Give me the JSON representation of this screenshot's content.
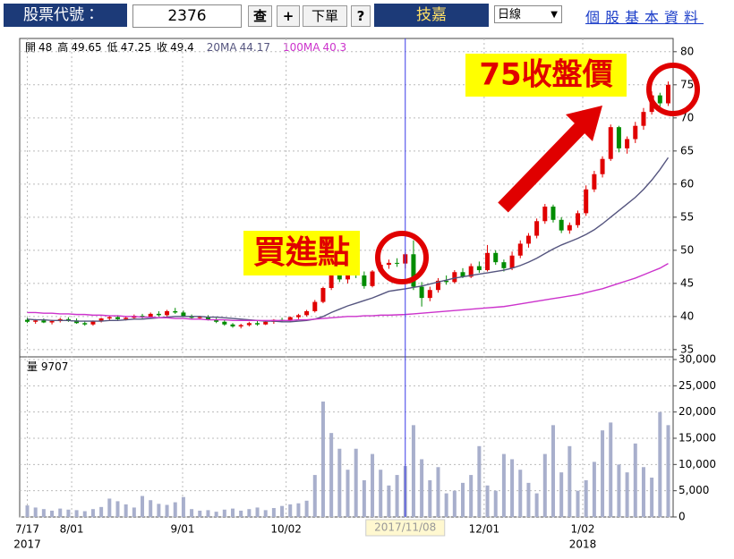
{
  "toolbar": {
    "code_label": "股票代號：",
    "code": "2376",
    "query": "查",
    "plus": "+",
    "order": "下單",
    "help": "?",
    "name": "技嘉",
    "period": "日線",
    "link": "個股基本資料"
  },
  "chart_data": {
    "type": "candlestick",
    "info": [
      {
        "label": "開",
        "value": 48
      },
      {
        "label": "高",
        "value": 49.65
      },
      {
        "label": "低",
        "value": 47.25
      },
      {
        "label": "收",
        "value": 49.4
      }
    ],
    "up_color": "#e00000",
    "down_color": "#008c00",
    "ohlc": [
      [
        39.5,
        39.8,
        39.0,
        39.2
      ],
      [
        39.2,
        39.6,
        38.9,
        39.4
      ],
      [
        39.4,
        39.7,
        39.0,
        39.1
      ],
      [
        39.1,
        39.5,
        38.8,
        39.3
      ],
      [
        39.3,
        39.8,
        39.1,
        39.6
      ],
      [
        39.6,
        39.9,
        39.2,
        39.4
      ],
      [
        39.4,
        39.7,
        38.9,
        39.0
      ],
      [
        39.0,
        39.3,
        38.6,
        38.8
      ],
      [
        38.8,
        39.4,
        38.6,
        39.3
      ],
      [
        39.3,
        39.8,
        39.1,
        39.7
      ],
      [
        39.7,
        40.1,
        39.4,
        39.9
      ],
      [
        39.9,
        40.2,
        39.5,
        39.6
      ],
      [
        39.6,
        40.0,
        39.4,
        39.8
      ],
      [
        39.8,
        40.3,
        39.6,
        40.1
      ],
      [
        40.1,
        40.4,
        39.7,
        39.9
      ],
      [
        39.9,
        40.6,
        39.8,
        40.4
      ],
      [
        40.4,
        40.8,
        40.0,
        40.2
      ],
      [
        40.2,
        41.0,
        40.0,
        40.8
      ],
      [
        40.8,
        41.3,
        40.4,
        40.6
      ],
      [
        40.6,
        40.9,
        39.9,
        40.0
      ],
      [
        40.0,
        40.3,
        39.6,
        39.8
      ],
      [
        39.8,
        40.1,
        39.5,
        39.9
      ],
      [
        39.9,
        40.2,
        39.4,
        39.5
      ],
      [
        39.5,
        39.8,
        39.0,
        39.2
      ],
      [
        39.2,
        39.5,
        38.6,
        38.8
      ],
      [
        38.8,
        39.0,
        38.3,
        38.5
      ],
      [
        38.5,
        38.9,
        38.2,
        38.7
      ],
      [
        38.7,
        39.2,
        38.5,
        39.0
      ],
      [
        39.0,
        39.3,
        38.6,
        38.8
      ],
      [
        38.8,
        39.4,
        38.7,
        39.2
      ],
      [
        39.2,
        39.6,
        38.9,
        39.5
      ],
      [
        39.5,
        39.8,
        39.1,
        39.4
      ],
      [
        39.4,
        40.0,
        39.2,
        39.9
      ],
      [
        39.9,
        40.4,
        39.6,
        40.2
      ],
      [
        40.2,
        41.0,
        40.0,
        40.8
      ],
      [
        40.8,
        42.5,
        40.6,
        42.2
      ],
      [
        42.2,
        44.5,
        42.0,
        44.3
      ],
      [
        44.3,
        47.5,
        44.0,
        47.0
      ],
      [
        47.0,
        47.4,
        45.2,
        45.6
      ],
      [
        45.6,
        47.0,
        45.0,
        46.6
      ],
      [
        46.6,
        47.3,
        45.8,
        46.2
      ],
      [
        46.2,
        46.8,
        44.2,
        44.6
      ],
      [
        44.6,
        47.0,
        44.4,
        46.8
      ],
      [
        46.8,
        48.2,
        46.5,
        47.8
      ],
      [
        47.8,
        48.6,
        47.2,
        48.1
      ],
      [
        48.1,
        48.8,
        47.5,
        48.0
      ],
      [
        48,
        49.65,
        47.25,
        49.4
      ],
      [
        49.4,
        51.5,
        44.0,
        44.5
      ],
      [
        44.5,
        45.2,
        41.5,
        42.8
      ],
      [
        42.8,
        44.5,
        42.3,
        44.0
      ],
      [
        44.0,
        45.8,
        43.6,
        45.4
      ],
      [
        45.4,
        46.2,
        44.8,
        45.2
      ],
      [
        45.2,
        47.0,
        45.0,
        46.7
      ],
      [
        46.7,
        47.3,
        45.8,
        46.0
      ],
      [
        46.0,
        48.0,
        45.8,
        47.6
      ],
      [
        47.6,
        48.3,
        46.6,
        47.0
      ],
      [
        47.0,
        50.8,
        46.8,
        49.6
      ],
      [
        49.6,
        50.0,
        47.8,
        48.2
      ],
      [
        48.2,
        48.6,
        46.8,
        47.3
      ],
      [
        47.3,
        49.8,
        47.0,
        49.2
      ],
      [
        49.2,
        51.5,
        48.8,
        51.0
      ],
      [
        51.0,
        52.6,
        50.4,
        52.2
      ],
      [
        52.2,
        54.8,
        51.8,
        54.4
      ],
      [
        54.4,
        57.0,
        54.0,
        56.6
      ],
      [
        56.6,
        56.9,
        54.2,
        54.6
      ],
      [
        54.6,
        55.0,
        52.6,
        53.0
      ],
      [
        53.0,
        54.2,
        52.5,
        53.8
      ],
      [
        53.8,
        56.0,
        53.4,
        55.6
      ],
      [
        55.6,
        59.8,
        55.2,
        59.2
      ],
      [
        59.2,
        62.0,
        58.8,
        61.5
      ],
      [
        61.5,
        64.2,
        61.0,
        63.8
      ],
      [
        63.8,
        69.0,
        63.5,
        68.6
      ],
      [
        68.6,
        68.8,
        64.8,
        65.4
      ],
      [
        65.4,
        67.2,
        64.6,
        66.8
      ],
      [
        66.8,
        69.4,
        66.2,
        68.8
      ],
      [
        68.8,
        71.5,
        68.2,
        70.9
      ],
      [
        70.9,
        74.0,
        70.5,
        73.4
      ],
      [
        73.4,
        73.8,
        71.6,
        72.2
      ],
      [
        72.2,
        75.5,
        71.8,
        75.0
      ]
    ],
    "series": [
      {
        "name": "20MA",
        "readout": 44.17,
        "color": "#55557f",
        "values": [
          39.6,
          39.5,
          39.5,
          39.4,
          39.4,
          39.4,
          39.3,
          39.3,
          39.3,
          39.3,
          39.4,
          39.4,
          39.5,
          39.6,
          39.6,
          39.7,
          39.8,
          39.9,
          40.0,
          40.0,
          40.0,
          40.0,
          39.9,
          39.9,
          39.8,
          39.7,
          39.6,
          39.5,
          39.4,
          39.3,
          39.3,
          39.2,
          39.2,
          39.3,
          39.4,
          39.6,
          40.0,
          40.6,
          41.1,
          41.6,
          42.0,
          42.4,
          42.8,
          43.3,
          43.8,
          44.0,
          44.17,
          44.4,
          44.6,
          44.9,
          45.2,
          45.5,
          45.8,
          46.0,
          46.2,
          46.4,
          46.6,
          46.8,
          47.0,
          47.3,
          47.7,
          48.2,
          48.8,
          49.5,
          50.2,
          50.8,
          51.3,
          51.8,
          52.4,
          53.1,
          54.0,
          55.0,
          56.0,
          57.0,
          58.0,
          59.2,
          60.6,
          62.2,
          64.0
        ]
      },
      {
        "name": "100MA",
        "readout": 40.3,
        "color": "#cc33cc",
        "values": [
          40.6,
          40.6,
          40.5,
          40.5,
          40.4,
          40.4,
          40.3,
          40.3,
          40.2,
          40.2,
          40.1,
          40.1,
          40.0,
          40.0,
          39.9,
          39.9,
          39.8,
          39.8,
          39.7,
          39.7,
          39.6,
          39.6,
          39.5,
          39.5,
          39.5,
          39.4,
          39.4,
          39.4,
          39.4,
          39.4,
          39.4,
          39.4,
          39.4,
          39.5,
          39.5,
          39.6,
          39.7,
          39.8,
          39.9,
          40.0,
          40.0,
          40.1,
          40.1,
          40.2,
          40.2,
          40.25,
          40.3,
          40.4,
          40.5,
          40.6,
          40.7,
          40.8,
          40.9,
          41.0,
          41.1,
          41.2,
          41.3,
          41.4,
          41.5,
          41.7,
          41.9,
          42.1,
          42.3,
          42.5,
          42.7,
          42.9,
          43.1,
          43.3,
          43.6,
          43.9,
          44.2,
          44.6,
          45.0,
          45.4,
          45.8,
          46.3,
          46.8,
          47.3,
          48.0
        ]
      }
    ],
    "ylim": [
      33.9,
      82
    ],
    "yticks": [
      35,
      40,
      45,
      50,
      55,
      60,
      65,
      70,
      75,
      80
    ],
    "xlim": [
      -0.6,
      78.6
    ],
    "xticks": [
      {
        "value": 0,
        "label": "7/17"
      },
      {
        "value": 5.4,
        "label": "8/01"
      },
      {
        "value": 18.9,
        "label": "9/01"
      },
      {
        "value": 31.5,
        "label": "10/02"
      },
      {
        "value": 55.6,
        "label": "12/01"
      },
      {
        "value": 67.6,
        "label": "1/02"
      }
    ],
    "year_labels": [
      {
        "value": 0,
        "label": "2017"
      },
      {
        "value": 67.6,
        "label": "2018"
      }
    ],
    "crosshair": {
      "value": 46,
      "label": "2017/11/08",
      "color": "#3a3ae8"
    },
    "volume": {
      "label": "量",
      "readout": 9707,
      "color": "#a8afcc",
      "values": [
        2200,
        1800,
        1500,
        1200,
        1600,
        1400,
        1300,
        1100,
        1500,
        1900,
        3500,
        3000,
        2400,
        1800,
        4000,
        3200,
        2500,
        2300,
        2800,
        3800,
        1500,
        1200,
        1300,
        1000,
        1400,
        1600,
        1200,
        1500,
        1800,
        1300,
        1700,
        2100,
        2400,
        2600,
        3100,
        8000,
        22000,
        16000,
        13000,
        9000,
        13000,
        7000,
        12000,
        9000,
        6000,
        8000,
        9707,
        17500,
        11000,
        7000,
        9500,
        4500,
        5000,
        6500,
        8000,
        13500,
        6000,
        5000,
        12000,
        11000,
        9000,
        6500,
        4500,
        12000,
        17500,
        8500,
        13500,
        5000,
        7000,
        10500,
        16500,
        18000,
        10000,
        8500,
        14000,
        9500,
        7500,
        20000,
        17500
      ],
      "ylim": [
        0,
        30000
      ],
      "yticks": [
        0,
        {
          "value": 5000,
          "label": "5,000"
        },
        {
          "value": 10000,
          "label": "10,000"
        },
        {
          "value": 15000,
          "label": "15,000"
        },
        {
          "value": 20000,
          "label": "20,000"
        },
        {
          "value": 25000,
          "label": "25,000"
        },
        {
          "value": 30000,
          "label": "30,000"
        }
      ]
    },
    "grid": true,
    "annotations": [
      "75收盤價",
      "買進點"
    ]
  }
}
